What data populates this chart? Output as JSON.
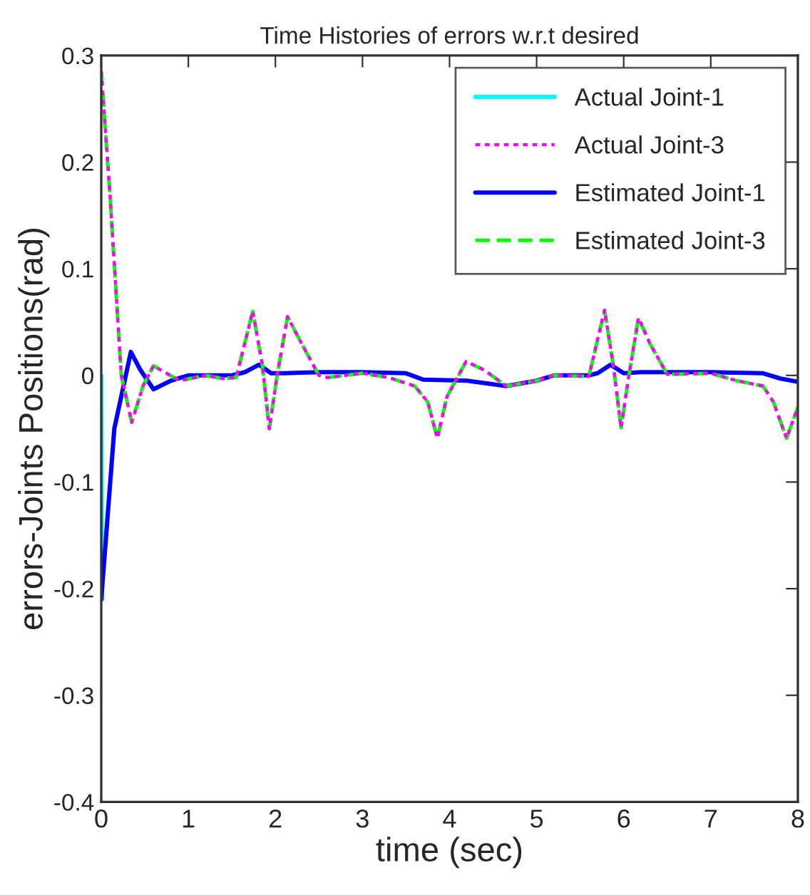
{
  "chart_data": {
    "type": "line",
    "title": "Time Histories of errors w.r.t desired",
    "xlabel": "time (sec)",
    "ylabel": "errors-Joints Positions(rad)",
    "xlim": [
      0,
      8
    ],
    "ylim": [
      -0.4,
      0.3
    ],
    "xticks": [
      0,
      1,
      2,
      3,
      4,
      5,
      6,
      7,
      8
    ],
    "yticks": [
      -0.4,
      -0.3,
      -0.2,
      -0.1,
      0,
      0.1,
      0.2,
      0.3
    ],
    "grid": false,
    "legend": "top right",
    "series": [
      {
        "name": "Actual Joint-1",
        "color": "#00ffff",
        "line_style": "solid",
        "x": [
          0,
          0.01
        ],
        "values": [
          0,
          -0.21
        ]
      },
      {
        "name": "Actual Joint-3",
        "color": "#ff00ff",
        "line_style": "dotted",
        "x": [
          0,
          0.1,
          0.23,
          0.35,
          0.48,
          0.6,
          0.75,
          0.9,
          1.2,
          1.4,
          1.55,
          1.74,
          1.85,
          1.93,
          2.02,
          2.14,
          2.3,
          2.5,
          2.6,
          3.0,
          3.3,
          3.6,
          3.75,
          3.86,
          3.97,
          4.19,
          4.4,
          4.65,
          5.0,
          5.2,
          5.6,
          5.78,
          5.88,
          5.97,
          6.06,
          6.17,
          6.3,
          6.5,
          7.0,
          7.3,
          7.6,
          7.72,
          7.87,
          8.0
        ],
        "values": [
          0.285,
          0.17,
          0,
          -0.044,
          -0.01,
          0.009,
          0.002,
          -0.005,
          0,
          -0.003,
          -0.002,
          0.06,
          0.01,
          -0.05,
          0.0,
          0.055,
          0.03,
          0,
          -0.002,
          0.002,
          -0.002,
          -0.01,
          -0.025,
          -0.059,
          -0.02,
          0.013,
          0.005,
          -0.01,
          -0.005,
          0,
          -0.001,
          0.061,
          0.01,
          -0.049,
          0.0,
          0.054,
          0.03,
          0.001,
          0.002,
          -0.005,
          -0.01,
          -0.025,
          -0.059,
          -0.03
        ]
      },
      {
        "name": "Estimated Joint-1",
        "color": "#0000ff",
        "line_style": "solid",
        "x": [
          0,
          0.15,
          0.34,
          0.45,
          0.6,
          0.8,
          1.0,
          1.5,
          1.65,
          1.81,
          1.95,
          2.1,
          2.5,
          3.0,
          3.5,
          3.7,
          4.2,
          4.65,
          5.0,
          5.2,
          5.6,
          5.7,
          5.85,
          6.0,
          6.2,
          6.5,
          7.0,
          7.6,
          7.8,
          8.0
        ],
        "values": [
          -0.21,
          -0.05,
          0.022,
          0.005,
          -0.013,
          -0.005,
          0,
          0,
          0.003,
          0.01,
          0.002,
          0.002,
          0.003,
          0.003,
          0.002,
          -0.004,
          -0.005,
          -0.01,
          -0.005,
          0,
          0,
          0.002,
          0.01,
          0.002,
          0.003,
          0.003,
          0.003,
          0.002,
          -0.003,
          -0.006
        ]
      },
      {
        "name": "Estimated Joint-3",
        "color": "#00ff00",
        "line_style": "dashed",
        "x": [
          0,
          0.1,
          0.23,
          0.35,
          0.48,
          0.6,
          0.75,
          0.9,
          1.2,
          1.4,
          1.55,
          1.74,
          1.85,
          1.93,
          2.02,
          2.14,
          2.3,
          2.5,
          2.6,
          3.0,
          3.3,
          3.6,
          3.75,
          3.86,
          3.97,
          4.19,
          4.4,
          4.65,
          5.0,
          5.2,
          5.6,
          5.78,
          5.88,
          5.97,
          6.06,
          6.17,
          6.3,
          6.5,
          7.0,
          7.3,
          7.6,
          7.72,
          7.87,
          8.0
        ],
        "values": [
          0.285,
          0.17,
          0,
          -0.044,
          -0.01,
          0.009,
          0.002,
          -0.005,
          0,
          -0.003,
          -0.002,
          0.06,
          0.01,
          -0.05,
          0.0,
          0.055,
          0.03,
          0,
          -0.002,
          0.002,
          -0.002,
          -0.01,
          -0.025,
          -0.059,
          -0.02,
          0.013,
          0.005,
          -0.01,
          -0.005,
          0,
          -0.001,
          0.061,
          0.01,
          -0.049,
          0.0,
          0.054,
          0.03,
          0.001,
          0.002,
          -0.005,
          -0.01,
          -0.025,
          -0.059,
          -0.03
        ]
      }
    ]
  }
}
